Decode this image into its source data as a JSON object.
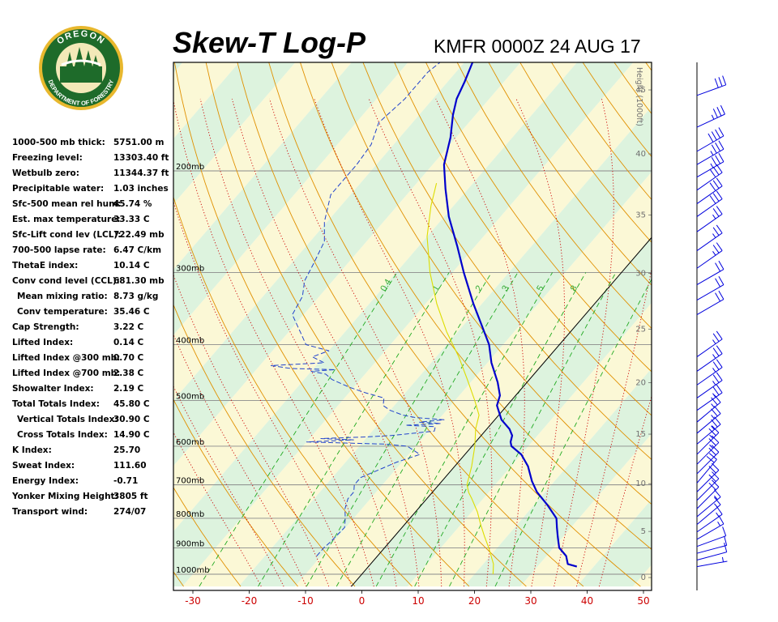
{
  "header": {
    "title": "Skew-T Log-P",
    "station_time": "KMFR 0000Z 24 AUG 17"
  },
  "logo": {
    "top_text": "OREGON",
    "bottom_text": "DEPARTMENT OF FORESTRY",
    "ring_color": "#1e6b2a",
    "accent_color": "#e8b82e"
  },
  "indices": [
    {
      "label": "1000-500 mb thick:",
      "value": "5751.00 m"
    },
    {
      "label": "Freezing level:",
      "value": "13303.40 ft"
    },
    {
      "label": "Wetbulb zero:",
      "value": "11344.37 ft"
    },
    {
      "label": "Precipitable water:",
      "value": "1.03 inches"
    },
    {
      "label": "Sfc-500 mean rel hum:",
      "value": "45.74 %"
    },
    {
      "label": "Est. max temperature:",
      "value": "33.33 C"
    },
    {
      "label": "Sfc-Lift cond lev (LCL):",
      "value": "722.49 mb"
    },
    {
      "label": "700-500 lapse rate:",
      "value": "6.47 C/km"
    },
    {
      "label": "ThetaE index:",
      "value": "10.14 C"
    },
    {
      "label": "Conv cond level (CCL):",
      "value": "681.30 mb"
    },
    {
      "label": "Mean mixing ratio:",
      "value": "8.73 g/kg",
      "indent": true
    },
    {
      "label": "Conv temperature:",
      "value": "35.46 C",
      "indent": true
    },
    {
      "label": "Cap Strength:",
      "value": "3.22 C"
    },
    {
      "label": "Lifted Index:",
      "value": "0.14 C"
    },
    {
      "label": "Lifted Index @300 mb:",
      "value": "0.70 C"
    },
    {
      "label": "Lifted Index @700 mb:",
      "value": "2.38 C"
    },
    {
      "label": "Showalter Index:",
      "value": "2.19 C"
    },
    {
      "label": "Total Totals Index:",
      "value": "45.80 C"
    },
    {
      "label": "Vertical Totals Index:",
      "value": "30.90 C",
      "indent": true
    },
    {
      "label": "Cross Totals Index:",
      "value": "14.90 C",
      "indent": true
    },
    {
      "label": "K Index:",
      "value": "25.70"
    },
    {
      "label": "Sweat Index:",
      "value": "111.60"
    },
    {
      "label": "Energy Index:",
      "value": "-0.71"
    },
    {
      "label": "Yonker Mixing Height:",
      "value": "3805 ft"
    },
    {
      "label": "Transport wind:",
      "value": "274/07"
    }
  ],
  "chart_data": {
    "type": "line",
    "title": "Skew-T Log-P",
    "subtitle": "KMFR 0000Z 24 AUG 17",
    "x_axis": {
      "label": "",
      "ticks": [
        -30,
        -20,
        -10,
        0,
        10,
        20,
        30,
        40,
        50
      ],
      "units": "C",
      "tick_color": "#cc0000"
    },
    "y_axis": {
      "scale": "log",
      "range_mb": [
        1050,
        100
      ],
      "pressure_labels": [
        {
          "p": 200,
          "label": "200mb"
        },
        {
          "p": 300,
          "label": "300mb"
        },
        {
          "p": 400,
          "label": "400mb"
        },
        {
          "p": 500,
          "label": "500mb"
        },
        {
          "p": 600,
          "label": "600mb"
        },
        {
          "p": 700,
          "label": "700mb"
        },
        {
          "p": 800,
          "label": "800mb"
        },
        {
          "p": 900,
          "label": "900mb"
        },
        {
          "p": 1000,
          "label": "1000mb"
        }
      ]
    },
    "height_axis": {
      "label": "Height (1000ft)",
      "ticks": [
        0,
        5,
        10,
        15,
        20,
        25,
        30,
        35,
        40,
        45,
        50
      ]
    },
    "mixing_ratio_labels": [
      "0.4",
      "1",
      "2",
      "3",
      "5",
      "8"
    ],
    "colors": {
      "temperature": "#0000cc",
      "dewpoint": "#2244cc",
      "parcel": "#dddd00",
      "isotherm": "#000000",
      "dry_adiabat": "#e09000",
      "moist_adiabat": "#cc0000",
      "mixing_ratio": "#22aa22",
      "band_green": "#ddf3de",
      "band_yellow": "#fbf8d6"
    },
    "series": [
      {
        "key": "temperature",
        "points": [
          [
            970,
            37
          ],
          [
            960,
            35
          ],
          [
            930,
            33.5
          ],
          [
            900,
            31
          ],
          [
            860,
            29
          ],
          [
            830,
            27.5
          ],
          [
            800,
            26
          ],
          [
            760,
            22.5
          ],
          [
            720,
            18.5
          ],
          [
            690,
            16
          ],
          [
            650,
            13
          ],
          [
            620,
            10
          ],
          [
            600,
            7
          ],
          [
            590,
            6.2
          ],
          [
            575,
            5.5
          ],
          [
            560,
            4
          ],
          [
            540,
            1.2
          ],
          [
            510,
            -1.8
          ],
          [
            490,
            -2.8
          ],
          [
            465,
            -5.2
          ],
          [
            430,
            -9.3
          ],
          [
            400,
            -12.5
          ],
          [
            370,
            -16.8
          ],
          [
            340,
            -21.5
          ],
          [
            300,
            -28
          ],
          [
            270,
            -33.2
          ],
          [
            240,
            -39.2
          ],
          [
            215,
            -44
          ],
          [
            195,
            -48
          ],
          [
            175,
            -51
          ],
          [
            160,
            -54
          ],
          [
            150,
            -55.8
          ],
          [
            140,
            -57
          ],
          [
            125,
            -59.3
          ],
          [
            110,
            -61.3
          ]
        ]
      },
      {
        "key": "dewpoint",
        "points": [
          [
            930,
            -10.8
          ],
          [
            900,
            -10.8
          ],
          [
            880,
            -10.5
          ],
          [
            860,
            -10.4
          ],
          [
            830,
            -10.2
          ],
          [
            800,
            -11.5
          ],
          [
            770,
            -13
          ],
          [
            740,
            -14
          ],
          [
            720,
            -14
          ],
          [
            700,
            -15
          ],
          [
            680,
            -15
          ],
          [
            660,
            -13
          ],
          [
            640,
            -11
          ],
          [
            620,
            -8
          ],
          [
            600,
            -11.5
          ],
          [
            595,
            -16
          ],
          [
            590,
            -30
          ],
          [
            585,
            -22
          ],
          [
            582,
            -28
          ],
          [
            578,
            -20
          ],
          [
            575,
            -16
          ],
          [
            565,
            -9
          ],
          [
            555,
            -9.5
          ],
          [
            552,
            -15
          ],
          [
            548,
            -9
          ],
          [
            545,
            -13
          ],
          [
            540,
            -9
          ],
          [
            535,
            -14.5
          ],
          [
            530,
            -17
          ],
          [
            520,
            -20
          ],
          [
            510,
            -22
          ],
          [
            495,
            -23
          ],
          [
            485,
            -27
          ],
          [
            475,
            -30.5
          ],
          [
            470,
            -32
          ],
          [
            460,
            -35
          ],
          [
            450,
            -37
          ],
          [
            445,
            -40
          ],
          [
            442,
            -36
          ],
          [
            440,
            -44
          ],
          [
            435,
            -48
          ],
          [
            430,
            -39
          ],
          [
            420,
            -42
          ],
          [
            410,
            -40
          ],
          [
            400,
            -45
          ],
          [
            380,
            -48
          ],
          [
            355,
            -52
          ],
          [
            330,
            -53
          ],
          [
            310,
            -55
          ],
          [
            290,
            -56
          ],
          [
            265,
            -57.5
          ],
          [
            245,
            -60.5
          ],
          [
            220,
            -63.5
          ],
          [
            205,
            -63.5
          ],
          [
            195,
            -63.5
          ],
          [
            180,
            -64
          ],
          [
            165,
            -66
          ],
          [
            150,
            -65
          ],
          [
            135,
            -65
          ],
          [
            120,
            -63
          ],
          [
            112,
            -60
          ]
        ]
      },
      {
        "key": "parcel",
        "points": [
          [
            1000,
            23.3
          ],
          [
            960,
            21.8
          ],
          [
            900,
            18.5
          ],
          [
            860,
            16
          ],
          [
            820,
            13.5
          ],
          [
            780,
            11
          ],
          [
            740,
            8
          ],
          [
            722,
            6.5
          ],
          [
            700,
            5
          ],
          [
            650,
            3
          ],
          [
            600,
            0.5
          ],
          [
            560,
            -2
          ],
          [
            530,
            -3.5
          ],
          [
            500,
            -6.5
          ],
          [
            460,
            -11
          ],
          [
            420,
            -16
          ],
          [
            380,
            -22
          ],
          [
            340,
            -28
          ],
          [
            300,
            -34
          ],
          [
            260,
            -40
          ],
          [
            230,
            -44
          ],
          [
            210,
            -46.5
          ]
        ]
      }
    ],
    "wind_barbs": [
      {
        "p": 970,
        "dir": 260,
        "kt": 5
      },
      {
        "p": 945,
        "dir": 255,
        "kt": 10
      },
      {
        "p": 920,
        "dir": 255,
        "kt": 10
      },
      {
        "p": 895,
        "dir": 250,
        "kt": 10
      },
      {
        "p": 870,
        "dir": 240,
        "kt": 15
      },
      {
        "p": 845,
        "dir": 235,
        "kt": 15
      },
      {
        "p": 820,
        "dir": 230,
        "kt": 15
      },
      {
        "p": 795,
        "dir": 230,
        "kt": 15
      },
      {
        "p": 770,
        "dir": 225,
        "kt": 20
      },
      {
        "p": 745,
        "dir": 225,
        "kt": 20
      },
      {
        "p": 720,
        "dir": 225,
        "kt": 20
      },
      {
        "p": 695,
        "dir": 220,
        "kt": 20
      },
      {
        "p": 670,
        "dir": 225,
        "kt": 20
      },
      {
        "p": 645,
        "dir": 225,
        "kt": 25
      },
      {
        "p": 620,
        "dir": 225,
        "kt": 25
      },
      {
        "p": 595,
        "dir": 230,
        "kt": 25
      },
      {
        "p": 570,
        "dir": 230,
        "kt": 25
      },
      {
        "p": 545,
        "dir": 230,
        "kt": 25
      },
      {
        "p": 520,
        "dir": 235,
        "kt": 25
      },
      {
        "p": 495,
        "dir": 235,
        "kt": 25
      },
      {
        "p": 470,
        "dir": 235,
        "kt": 25
      },
      {
        "p": 445,
        "dir": 235,
        "kt": 25
      },
      {
        "p": 420,
        "dir": 235,
        "kt": 25
      },
      {
        "p": 355,
        "dir": 240,
        "kt": 20
      },
      {
        "p": 335,
        "dir": 240,
        "kt": 20
      },
      {
        "p": 315,
        "dir": 240,
        "kt": 20
      },
      {
        "p": 295,
        "dir": 235,
        "kt": 25
      },
      {
        "p": 275,
        "dir": 235,
        "kt": 25
      },
      {
        "p": 255,
        "dir": 235,
        "kt": 25
      },
      {
        "p": 240,
        "dir": 235,
        "kt": 30
      },
      {
        "p": 228,
        "dir": 235,
        "kt": 30
      },
      {
        "p": 216,
        "dir": 235,
        "kt": 30
      },
      {
        "p": 205,
        "dir": 240,
        "kt": 35
      },
      {
        "p": 195,
        "dir": 240,
        "kt": 35
      },
      {
        "p": 185,
        "dir": 240,
        "kt": 40
      },
      {
        "p": 168,
        "dir": 245,
        "kt": 35
      },
      {
        "p": 148,
        "dir": 250,
        "kt": 30
      },
      {
        "p": 128,
        "dir": 250,
        "kt": 15
      }
    ]
  }
}
